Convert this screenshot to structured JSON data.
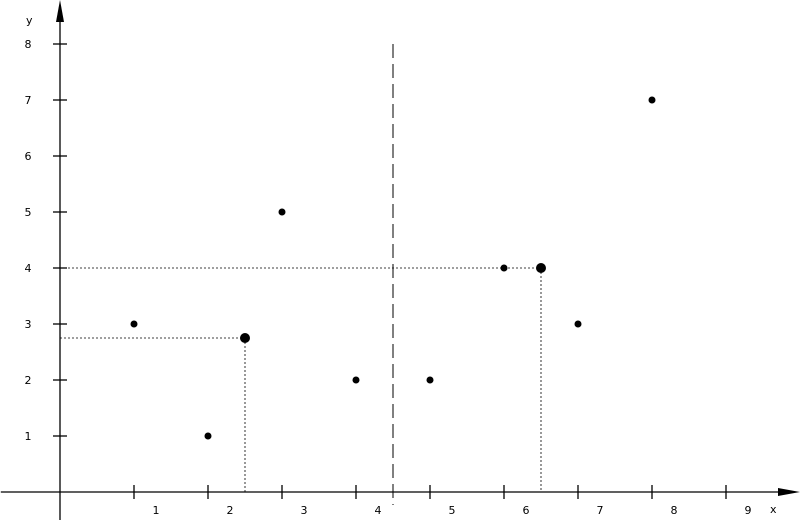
{
  "chart_data": {
    "type": "scatter",
    "xlabel": "x",
    "ylabel": "y",
    "xlim": [
      -0.8,
      9.9
    ],
    "ylim": [
      -0.5,
      8.8
    ],
    "x_ticks": [
      1,
      2,
      3,
      4,
      5,
      6,
      7,
      8,
      9
    ],
    "y_ticks": [
      1,
      2,
      3,
      4,
      5,
      6,
      7,
      8
    ],
    "x_tick_labels": [
      "1",
      "2",
      "3",
      "4",
      "5",
      "6",
      "7",
      "8",
      "9"
    ],
    "y_tick_labels": [
      "1",
      "2",
      "3",
      "4",
      "5",
      "6",
      "7",
      "8"
    ],
    "points": [
      {
        "x": 1,
        "y": 3
      },
      {
        "x": 2,
        "y": 1
      },
      {
        "x": 3,
        "y": 5
      },
      {
        "x": 4,
        "y": 2
      },
      {
        "x": 5,
        "y": 2
      },
      {
        "x": 6,
        "y": 4
      },
      {
        "x": 7,
        "y": 3
      },
      {
        "x": 8,
        "y": 7
      }
    ],
    "highlighted_points": [
      {
        "x": 2.5,
        "y": 2.75
      },
      {
        "x": 6.5,
        "y": 4
      }
    ],
    "vertical_divider_x": 4.5,
    "grid": false,
    "colors": {
      "axis": "#000000",
      "points": "#000000"
    }
  }
}
